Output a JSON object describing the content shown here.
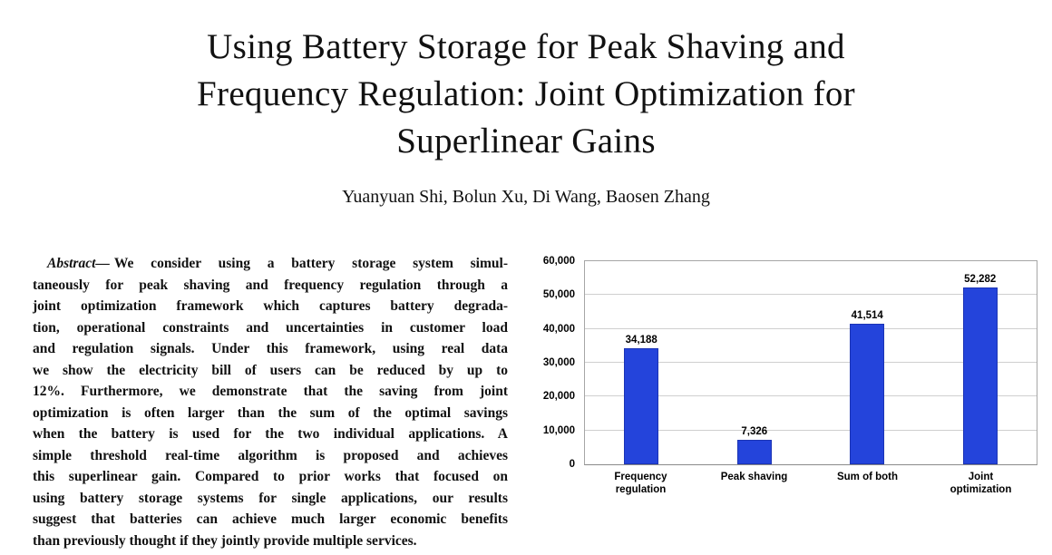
{
  "paper": {
    "title_lines": [
      "Using Battery Storage for Peak Shaving and",
      "Frequency Regulation: Joint Optimization for",
      "Superlinear Gains"
    ],
    "authors": "Yuanyuan Shi, Bolun Xu, Di Wang, Baosen Zhang",
    "abstract": {
      "label": "Abstract—",
      "lines": [
        "We consider using a battery storage system simul-",
        "taneously for peak shaving and frequency regulation through a",
        "joint optimization framework which captures battery degrada-",
        "tion, operational constraints and uncertainties in customer load",
        "and regulation signals. Under this framework, using real data",
        "we show the electricity bill of users can be reduced by up to",
        "12%. Furthermore, we demonstrate that the saving from joint",
        "optimization is often larger than the sum of the optimal savings",
        "when the battery is used for the two individual applications. A",
        "simple threshold real-time algorithm is proposed and achieves",
        "this superlinear gain. Compared to prior works that focused on",
        "using battery storage systems for single applications, our results",
        "suggest that batteries can achieve much larger economic benefits",
        "than previously thought if they jointly provide multiple services."
      ]
    }
  },
  "chart_data": {
    "type": "bar",
    "title": "",
    "categories": [
      "Frequency regulation",
      "Peak shaving",
      "Sum of both",
      "Joint optimization"
    ],
    "category_lines": [
      [
        "Frequency",
        "regulation"
      ],
      [
        "Peak shaving"
      ],
      [
        "Sum of both"
      ],
      [
        "Joint",
        "optimization"
      ]
    ],
    "values": [
      34188,
      7326,
      41514,
      52282
    ],
    "value_labels": [
      "34,188",
      "7,326",
      "41,514",
      "52,282"
    ],
    "ylim": [
      0,
      60000
    ],
    "ytick_values": [
      0,
      10000,
      20000,
      30000,
      40000,
      50000,
      60000
    ],
    "ytick_labels": [
      "0",
      "10,000",
      "20,000",
      "30,000",
      "40,000",
      "50,000",
      "60,000"
    ],
    "bar_color": "#2444DB",
    "grid": true,
    "legend": "none"
  }
}
